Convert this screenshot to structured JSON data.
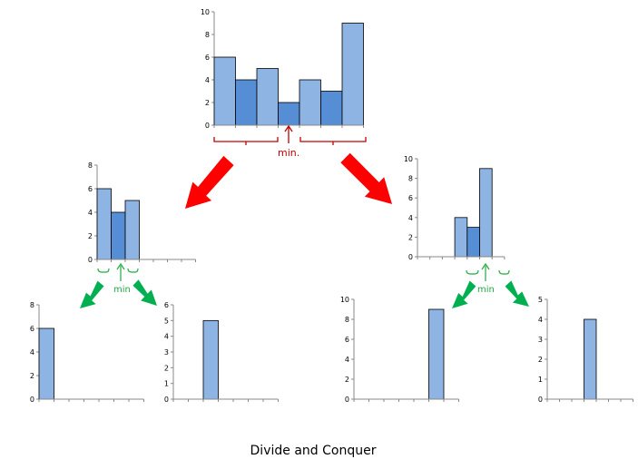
{
  "caption": "Divide and Conquer",
  "min_labels": {
    "top": "min.",
    "left": "min",
    "right": "min"
  },
  "colors": {
    "bar_light": "#8eb4e3",
    "bar_dark": "#558ed5",
    "bar_stroke": "#000000",
    "arrow_red": "#ff0000",
    "arrow_green": "#00b050",
    "brace_red": "#c00000",
    "brace_green": "#22aa44"
  },
  "chart_data": [
    {
      "type": "bar",
      "id": "top",
      "values": [
        6,
        4,
        5,
        2,
        4,
        3,
        9
      ],
      "highlight": [
        1,
        3,
        5
      ],
      "yticks": [
        0,
        2,
        4,
        6,
        8,
        10
      ],
      "ylim": [
        0,
        10
      ],
      "slots": 7
    },
    {
      "type": "bar",
      "id": "mid-left",
      "values": [
        6,
        4,
        5,
        null,
        null,
        null,
        null
      ],
      "highlight": [
        1
      ],
      "yticks": [
        0,
        2,
        4,
        6,
        8
      ],
      "ylim": [
        0,
        8
      ],
      "slots": 7
    },
    {
      "type": "bar",
      "id": "mid-right",
      "values": [
        null,
        null,
        null,
        4,
        3,
        9,
        null
      ],
      "highlight": [
        4
      ],
      "yticks": [
        0,
        2,
        4,
        6,
        8,
        10
      ],
      "ylim": [
        0,
        10
      ],
      "slots": 7
    },
    {
      "type": "bar",
      "id": "bottom-1",
      "values": [
        6,
        null,
        null,
        null,
        null,
        null,
        null
      ],
      "highlight": [],
      "yticks": [
        0,
        2,
        4,
        6,
        8
      ],
      "ylim": [
        0,
        8
      ],
      "slots": 7
    },
    {
      "type": "bar",
      "id": "bottom-2",
      "values": [
        null,
        null,
        5,
        null,
        null,
        null,
        null
      ],
      "highlight": [],
      "yticks": [
        0,
        1,
        2,
        3,
        4,
        5,
        6
      ],
      "ylim": [
        0,
        6
      ],
      "slots": 7
    },
    {
      "type": "bar",
      "id": "bottom-3",
      "values": [
        null,
        null,
        null,
        null,
        null,
        9,
        null
      ],
      "highlight": [],
      "yticks": [
        0,
        2,
        4,
        6,
        8,
        10
      ],
      "ylim": [
        0,
        10
      ],
      "slots": 7
    },
    {
      "type": "bar",
      "id": "bottom-4",
      "values": [
        null,
        null,
        null,
        4,
        null,
        null,
        null
      ],
      "highlight": [],
      "yticks": [
        0,
        1,
        2,
        3,
        4,
        5
      ],
      "ylim": [
        0,
        5
      ],
      "slots": 7
    }
  ]
}
